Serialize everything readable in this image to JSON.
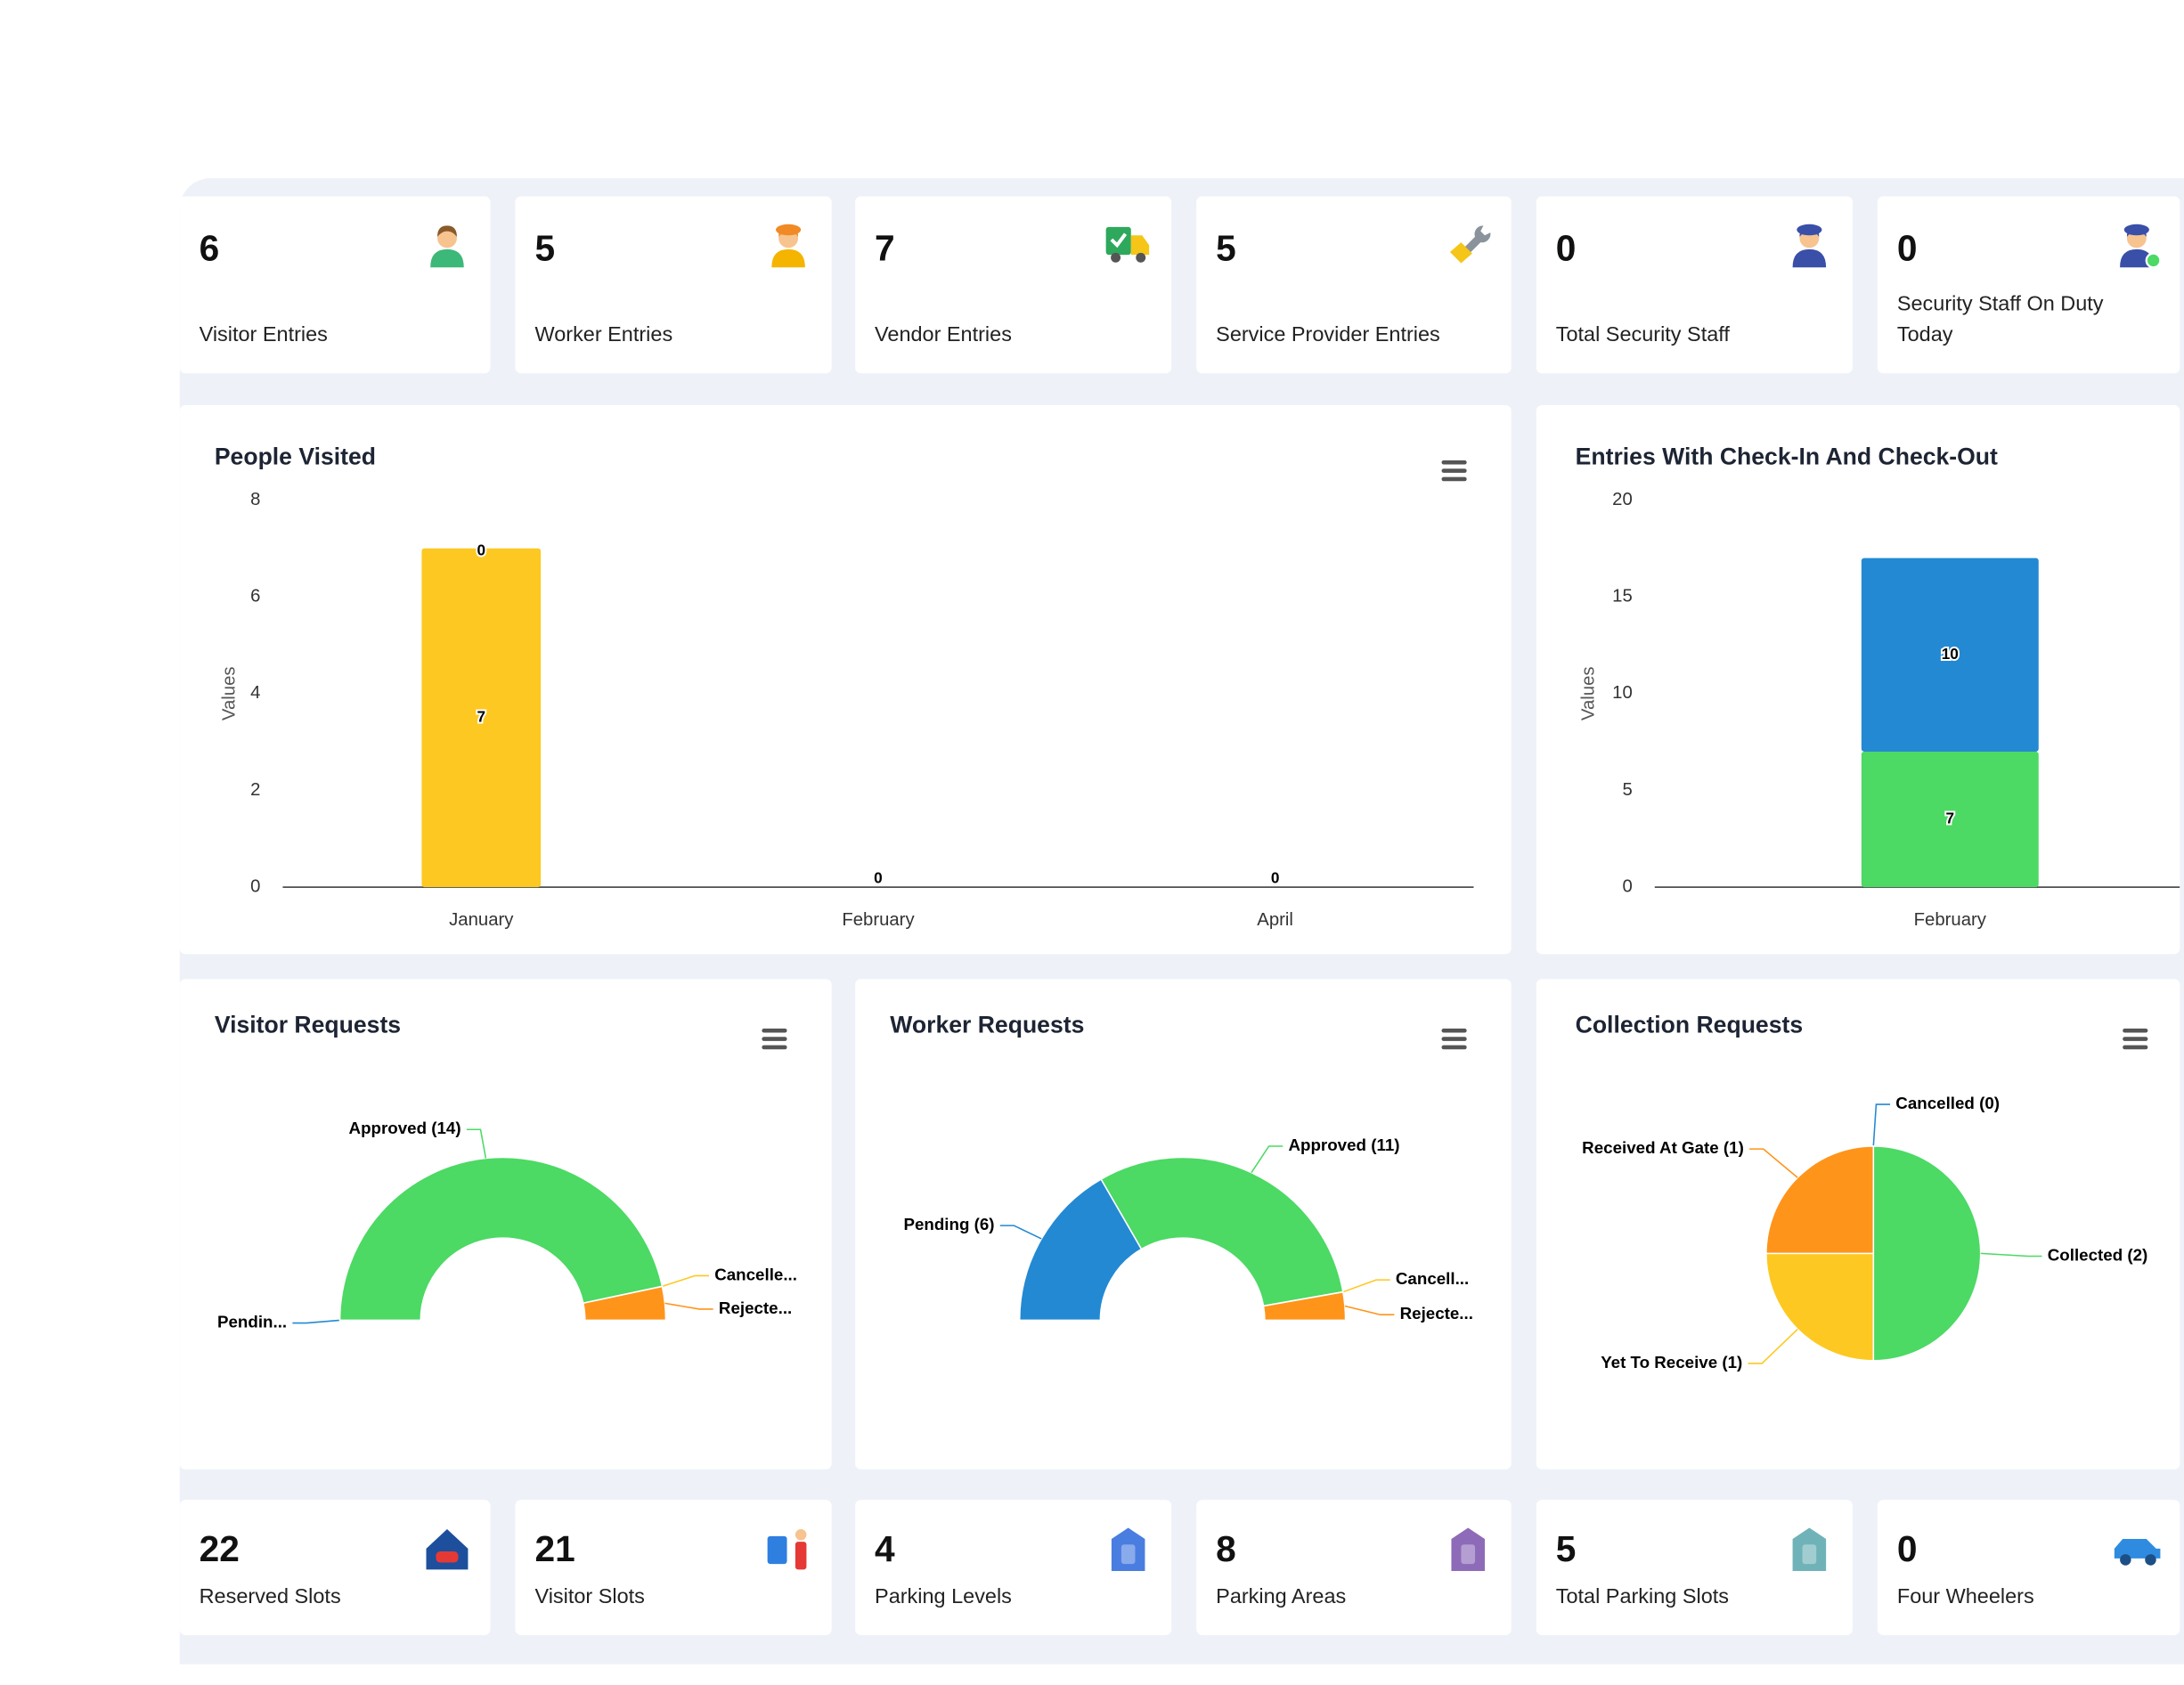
{
  "top_cards": [
    {
      "value": 6,
      "label": "Visitor Entries"
    },
    {
      "value": 5,
      "label": "Worker Entries"
    },
    {
      "value": 7,
      "label": "Vendor Entries"
    },
    {
      "value": 5,
      "label": "Service Provider Entries"
    },
    {
      "value": 0,
      "label": "Total Security Staff"
    },
    {
      "value": 0,
      "label": "Security Staff On Duty Today"
    }
  ],
  "chart_data": [
    {
      "type": "bar",
      "stacked": true,
      "title": "People Visited",
      "ylabel": "Values",
      "categories": [
        "January",
        "February",
        "April"
      ],
      "series": [
        {
          "color": "#fdc821",
          "values": [
            7,
            0,
            0
          ]
        },
        {
          "color": "#2389d3",
          "values": [
            0,
            null,
            null
          ]
        }
      ],
      "ylim": [
        0,
        8
      ],
      "yticks": [
        0,
        2,
        4,
        6,
        8
      ],
      "grid": false
    },
    {
      "type": "bar",
      "stacked": true,
      "title": "Entries With Check-In And Check-Out",
      "ylabel": "Values",
      "categories": [
        "February"
      ],
      "series": [
        {
          "color": "#4cd964",
          "values": [
            7
          ]
        },
        {
          "color": "#2389d3",
          "values": [
            10
          ]
        }
      ],
      "ylim": [
        0,
        20
      ],
      "yticks": [
        0,
        5,
        10,
        15,
        20
      ],
      "grid": false
    },
    {
      "type": "semi-donut",
      "title": "Visitor Requests",
      "labels": [
        "Pendin...",
        "Approved (14)",
        "Cancelle...",
        "Rejecte..."
      ],
      "values": [
        0,
        14,
        0,
        1
      ],
      "colors": [
        "#2389d3",
        "#4cd964",
        "#fdc821",
        "#ff941a"
      ]
    },
    {
      "type": "semi-donut",
      "title": "Worker Requests",
      "labels": [
        "Pending (6)",
        "Approved (11)",
        "Cancell...",
        "Rejecte..."
      ],
      "values": [
        6,
        11,
        0,
        1
      ],
      "colors": [
        "#2389d3",
        "#4cd964",
        "#fdc821",
        "#ff941a"
      ]
    },
    {
      "type": "pie",
      "title": "Collection Requests",
      "labels": [
        "Cancelled (0)",
        "Collected (2)",
        "Yet To Receive (1)",
        "Received At Gate (1)"
      ],
      "values": [
        0,
        2,
        1,
        1
      ],
      "colors": [
        "#2389d3",
        "#4cd964",
        "#fdc821",
        "#ff941a"
      ]
    }
  ],
  "bottom_cards": [
    {
      "value": 22,
      "label": "Reserved Slots"
    },
    {
      "value": 21,
      "label": "Visitor Slots"
    },
    {
      "value": 4,
      "label": "Parking Levels"
    },
    {
      "value": 8,
      "label": "Parking Areas"
    },
    {
      "value": 5,
      "label": "Total Parking Slots"
    },
    {
      "value": 0,
      "label": "Four Wheelers"
    }
  ]
}
